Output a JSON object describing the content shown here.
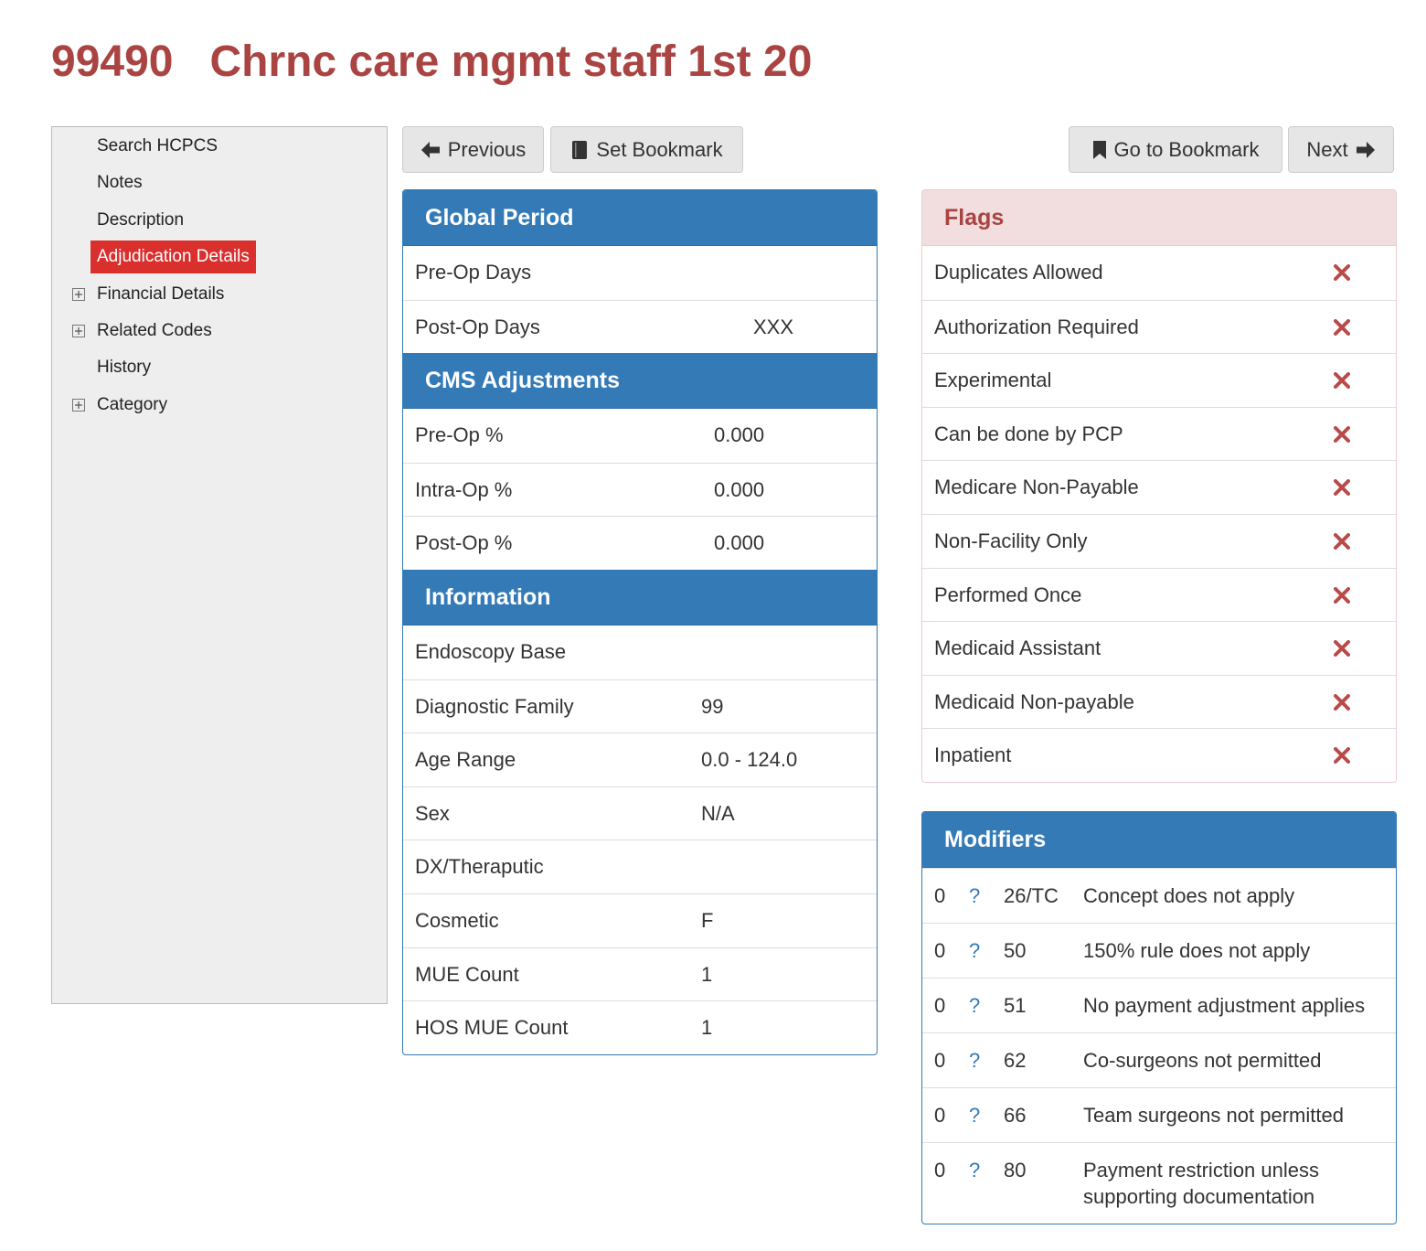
{
  "header": {
    "code": "99490",
    "title": "Chrnc care mgmt staff 1st 20"
  },
  "sidebar": {
    "items": [
      {
        "label": "Search HCPCS"
      },
      {
        "label": "Notes"
      },
      {
        "label": "Description"
      },
      {
        "label": "Adjudication Details",
        "active": true
      },
      {
        "label": "Financial Details",
        "expandable": true
      },
      {
        "label": "Related Codes",
        "expandable": true
      },
      {
        "label": "History"
      },
      {
        "label": "Category",
        "expandable": true
      }
    ]
  },
  "buttons": {
    "previous": "Previous",
    "set_bookmark": "Set Bookmark",
    "go_to_bookmark": "Go to Bookmark",
    "next": "Next"
  },
  "global_period": {
    "title": "Global Period",
    "rows": [
      {
        "label": "Pre-Op Days"
      },
      {
        "label": "Post-Op Days",
        "value": "XXX"
      }
    ]
  },
  "cms_adjustments": {
    "title": "CMS Adjustments",
    "rows": [
      {
        "label": "Pre-Op %",
        "value": "0.000"
      },
      {
        "label": "Intra-Op %",
        "value": "0.000"
      },
      {
        "label": "Post-Op %",
        "value": "0.000"
      }
    ]
  },
  "information": {
    "title": "Information",
    "rows": [
      {
        "label": "Endoscopy Base"
      },
      {
        "label": "Diagnostic Family",
        "value": "99"
      },
      {
        "label": "Age Range",
        "value": "0.0 - 124.0"
      },
      {
        "label": "Sex",
        "value": "N/A"
      },
      {
        "label": "DX/Theraputic"
      },
      {
        "label": "Cosmetic",
        "value": "F"
      },
      {
        "label": "MUE Count",
        "value": "1"
      },
      {
        "label": "HOS MUE Count",
        "value": "1"
      }
    ]
  },
  "flags": {
    "title": "Flags",
    "items": [
      "Duplicates Allowed",
      "Authorization Required",
      "Experimental",
      "Can be done by PCP",
      "Medicare Non-Payable",
      "Non-Facility Only",
      "Performed Once",
      "Medicaid Assistant",
      "Medicaid Non-payable",
      "Inpatient"
    ]
  },
  "modifiers": {
    "title": "Modifiers",
    "help_label": "?",
    "rows": [
      {
        "indicator": "0",
        "code": "26/TC",
        "description": "Concept does not apply"
      },
      {
        "indicator": "0",
        "code": "50",
        "description": "150% rule does not apply"
      },
      {
        "indicator": "0",
        "code": "51",
        "description": "No payment adjustment applies"
      },
      {
        "indicator": "0",
        "code": "62",
        "description": "Co-surgeons not permitted"
      },
      {
        "indicator": "0",
        "code": "66",
        "description": "Team surgeons not permitted"
      },
      {
        "indicator": "0",
        "code": "80",
        "description": "Payment restriction unless supporting documentation"
      }
    ]
  }
}
